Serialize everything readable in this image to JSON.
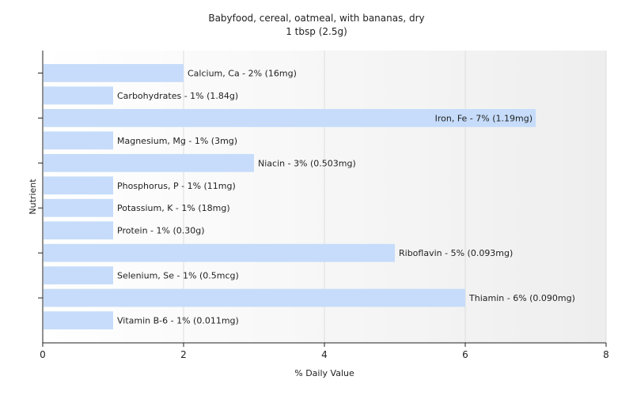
{
  "chart_data": {
    "type": "bar",
    "orientation": "horizontal",
    "title": "Babyfood, cereal, oatmeal, with bananas, dry",
    "subtitle": "1 tbsp (2.5g)",
    "xlabel": "% Daily Value",
    "ylabel": "Nutrient",
    "xlim": [
      0,
      8
    ],
    "xticks": [
      0,
      2,
      4,
      6,
      8
    ],
    "grid": true,
    "bar_color": "#c6dcfa",
    "categories": [
      "Calcium, Ca",
      "Carbohydrates",
      "Iron, Fe",
      "Magnesium, Mg",
      "Niacin",
      "Phosphorus, P",
      "Potassium, K",
      "Protein",
      "Riboflavin",
      "Selenium, Se",
      "Thiamin",
      "Vitamin B-6"
    ],
    "values": [
      2,
      1,
      7,
      1,
      3,
      1,
      1,
      1,
      5,
      1,
      6,
      1
    ],
    "labels": [
      "Calcium, Ca - 2% (16mg)",
      "Carbohydrates - 1% (1.84g)",
      "Iron, Fe - 7% (1.19mg)",
      "Magnesium, Mg - 1% (3mg)",
      "Niacin - 3% (0.503mg)",
      "Phosphorus, P - 1% (11mg)",
      "Potassium, K - 1% (18mg)",
      "Protein - 1% (0.30g)",
      "Riboflavin - 5% (0.093mg)",
      "Selenium, Se - 1% (0.5mcg)",
      "Thiamin - 6% (0.090mg)",
      "Vitamin B-6 - 1% (0.011mg)"
    ]
  }
}
